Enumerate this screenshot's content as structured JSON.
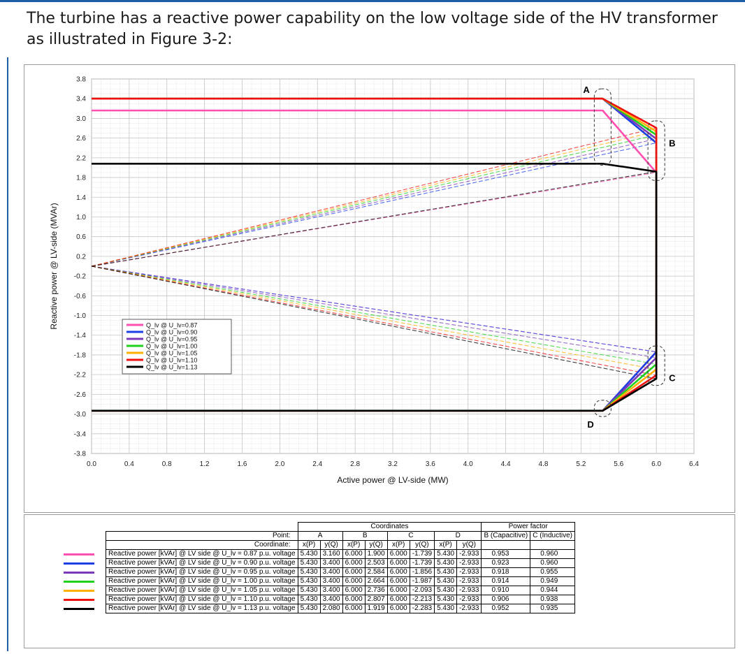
{
  "intro_text": "The turbine has a reactive power capability on the low voltage side of the HV transformer as illustrated in Figure 3-2:",
  "chart_data": {
    "type": "line",
    "xlabel": "Active power  @ LV-side (MW)",
    "ylabel": "Reactive power @ LV-side (MVAr)",
    "xlim": [
      0.0,
      6.4
    ],
    "ylim": [
      -3.8,
      3.8
    ],
    "x_ticks": [
      "0.0",
      "0.4",
      "0.8",
      "1.2",
      "1.6",
      "2.0",
      "2.4",
      "2.8",
      "3.2",
      "3.6",
      "4.0",
      "4.4",
      "4.8",
      "5.2",
      "5.6",
      "6.0",
      "6.4"
    ],
    "y_ticks": [
      "3.8",
      "3.4",
      "3.0",
      "2.6",
      "2.2",
      "1.8",
      "1.4",
      "1.0",
      "0.6",
      "0.2",
      "-0.2",
      "-0.6",
      "-1.0",
      "-1.4",
      "-1.8",
      "-2.2",
      "-2.6",
      "-3.0",
      "-3.4",
      "-3.8"
    ],
    "grid": true,
    "legend_position": "lower-left",
    "point_labels": [
      "A",
      "B",
      "C",
      "D"
    ],
    "series": [
      {
        "name": "Q_lv @ U_lv=0.87",
        "color": "#ff4fb0",
        "points": {
          "A": [
            5.43,
            3.16
          ],
          "B": [
            6.0,
            1.9
          ],
          "C": [
            6.0,
            -1.739
          ],
          "D": [
            5.43,
            -2.933
          ]
        }
      },
      {
        "name": "Q_lv @ U_lv=0.90",
        "color": "#1d3fe6",
        "points": {
          "A": [
            5.43,
            3.4
          ],
          "B": [
            6.0,
            2.503
          ],
          "C": [
            6.0,
            -1.739
          ],
          "D": [
            5.43,
            -2.933
          ]
        }
      },
      {
        "name": "Q_lv @ U_lv=0.95",
        "color": "#7a3ab8",
        "points": {
          "A": [
            5.43,
            3.4
          ],
          "B": [
            6.0,
            2.584
          ],
          "C": [
            6.0,
            -1.856
          ],
          "D": [
            5.43,
            -2.933
          ]
        }
      },
      {
        "name": "Q_lv @ U_lv=1.00",
        "color": "#1ed11e",
        "points": {
          "A": [
            5.43,
            3.4
          ],
          "B": [
            6.0,
            2.664
          ],
          "C": [
            6.0,
            -1.987
          ],
          "D": [
            5.43,
            -2.933
          ]
        }
      },
      {
        "name": "Q_lv @ U_lv=1.05",
        "color": "#ffb000",
        "points": {
          "A": [
            5.43,
            3.4
          ],
          "B": [
            6.0,
            2.736
          ],
          "C": [
            6.0,
            -2.093
          ],
          "D": [
            5.43,
            -2.933
          ]
        }
      },
      {
        "name": "Q_lv @ U_lv=1.10",
        "color": "#ee1111",
        "points": {
          "A": [
            5.43,
            3.4
          ],
          "B": [
            6.0,
            2.807
          ],
          "C": [
            6.0,
            -2.213
          ],
          "D": [
            5.43,
            -2.933
          ]
        }
      },
      {
        "name": "Q_lv @ U_lv=1.13",
        "color": "#000000",
        "points": {
          "A": [
            5.43,
            2.08
          ],
          "B": [
            6.0,
            1.919
          ],
          "C": [
            6.0,
            -2.283
          ],
          "D": [
            5.43,
            -2.933
          ]
        }
      }
    ]
  },
  "table": {
    "header_coordinates": "Coordinates",
    "header_power_factor": "Power factor",
    "label_point": "Point:",
    "label_coordinate": "Coordinate:",
    "point_names": [
      "A",
      "B",
      "C",
      "D"
    ],
    "pf_headers": [
      "B (Capacitive)",
      "C (Inductive)"
    ],
    "xp": "x(P)",
    "yq": "y(Q)",
    "rows": [
      {
        "label": "Reactive power [kVAr] @ LV side @ U_lv = 0.87 p.u. voltage",
        "values": [
          "5.430",
          "3.160",
          "6.000",
          "1.900",
          "6.000",
          "-1.739",
          "5.430",
          "-2.933"
        ],
        "pf": [
          "0.953",
          "0.960"
        ]
      },
      {
        "label": "Reactive power [kVAr] @ LV side @ U_lv = 0.90 p.u. voltage",
        "values": [
          "5.430",
          "3.400",
          "6.000",
          "2.503",
          "6.000",
          "-1.739",
          "5.430",
          "-2.933"
        ],
        "pf": [
          "0.923",
          "0.960"
        ]
      },
      {
        "label": "Reactive power [kVAr] @ LV side @ U_lv = 0.95 p.u. voltage",
        "values": [
          "5.430",
          "3.400",
          "6.000",
          "2.584",
          "6.000",
          "-1.856",
          "5.430",
          "-2.933"
        ],
        "pf": [
          "0.918",
          "0.955"
        ]
      },
      {
        "label": "Reactive power [kVAr] @ LV side @ U_lv = 1.00 p.u. voltage",
        "values": [
          "5.430",
          "3.400",
          "6.000",
          "2.664",
          "6.000",
          "-1.987",
          "5.430",
          "-2.933"
        ],
        "pf": [
          "0.914",
          "0.949"
        ]
      },
      {
        "label": "Reactive power [kVAr] @ LV side @ U_lv = 1.05 p.u. voltage",
        "values": [
          "5.430",
          "3.400",
          "6.000",
          "2.736",
          "6.000",
          "-2.093",
          "5.430",
          "-2.933"
        ],
        "pf": [
          "0.910",
          "0.944"
        ]
      },
      {
        "label": "Reactive power [kVAr] @ LV side @ U_lv = 1.10 p.u. voltage",
        "values": [
          "5.430",
          "3.400",
          "6.000",
          "2.807",
          "6.000",
          "-2.213",
          "5.430",
          "-2.933"
        ],
        "pf": [
          "0.906",
          "0.938"
        ]
      },
      {
        "label": "Reactive power [kVAr] @ LV side @ U_lv = 1.13 p.u. voltage",
        "values": [
          "5.430",
          "2.080",
          "6.000",
          "1.919",
          "6.000",
          "-2.283",
          "5.430",
          "-2.933"
        ],
        "pf": [
          "0.952",
          "0.935"
        ]
      }
    ]
  }
}
